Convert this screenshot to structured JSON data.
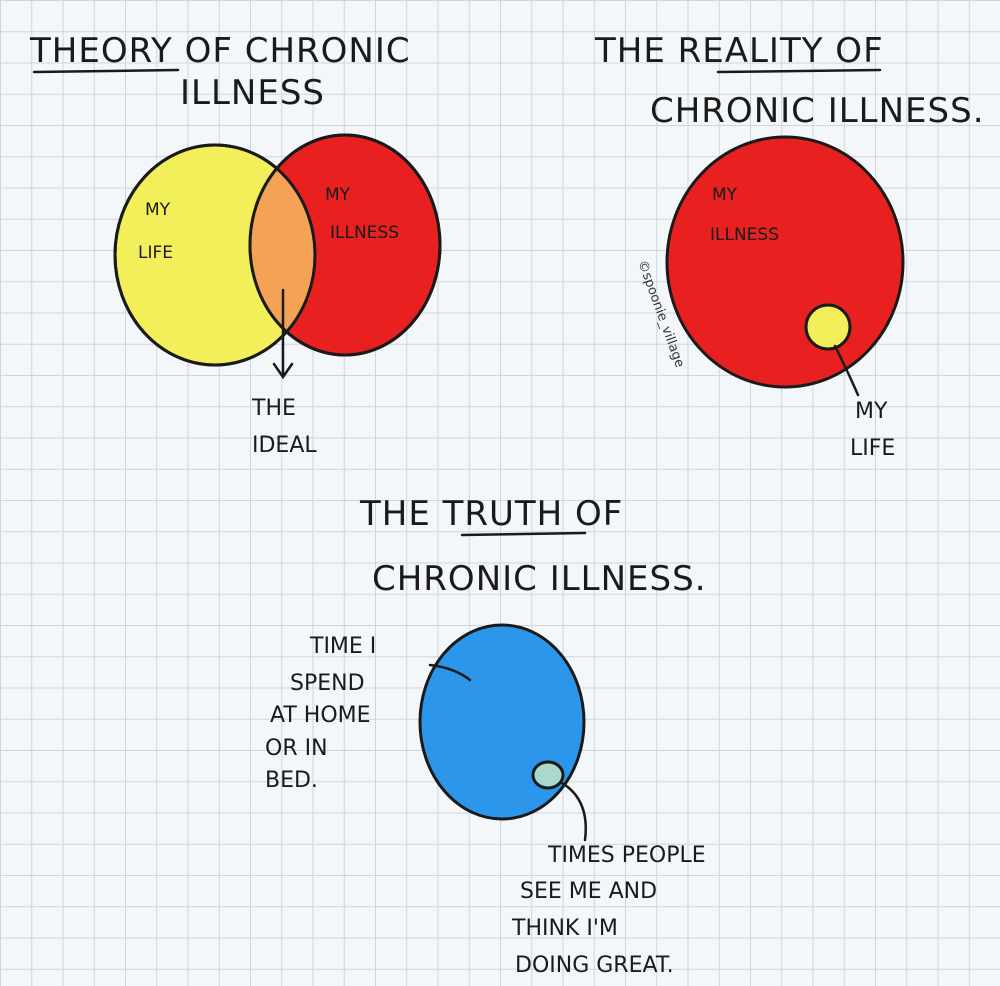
{
  "panel_theory": {
    "title_line1": "THEORY OF CHRONIC",
    "title_line2": "ILLNESS",
    "left_circle_label_line1": "MY",
    "left_circle_label_line2": "LIFE",
    "right_circle_label_line1": "MY",
    "right_circle_label_line2": "ILLNESS",
    "overlap_label_line1": "THE",
    "overlap_label_line2": "IDEAL",
    "colors": {
      "life": "#f3ef5a",
      "illness": "#e8201f",
      "overlap": "#f4a356"
    }
  },
  "panel_reality": {
    "title_line1": "THE REALITY OF",
    "title_line2": "CHRONIC ILLNESS.",
    "big_circle_label_line1": "MY",
    "big_circle_label_line2": "ILLNESS",
    "small_circle_label_line1": "MY",
    "small_circle_label_line2": "LIFE",
    "watermark": "©spoonie_village",
    "colors": {
      "illness": "#e8201f",
      "life": "#f3ef5a"
    }
  },
  "panel_truth": {
    "title_line1": "THE TRUTH OF",
    "title_line2": "CHRONIC ILLNESS.",
    "big_circle_label_lines": [
      "TIME I",
      "SPEND",
      "AT HOME",
      "OR IN",
      "BED."
    ],
    "small_circle_label_lines": [
      "TIMES PEOPLE",
      "SEE ME AND",
      "THINK I'M",
      "DOING GREAT."
    ],
    "colors": {
      "home": "#2b96ea",
      "seen": "#a9d8cf"
    }
  }
}
